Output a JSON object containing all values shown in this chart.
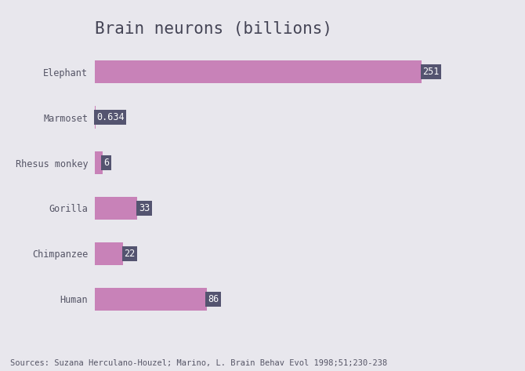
{
  "title": "Brain neurons (billions)",
  "categories": [
    "Elephant",
    "Marmoset",
    "Rhesus monkey",
    "Gorilla",
    "Chimpanzee",
    "Human"
  ],
  "values": [
    251,
    0.634,
    6,
    33,
    22,
    86
  ],
  "labels": [
    "251",
    "0.634",
    "6",
    "33",
    "22",
    "86"
  ],
  "bar_color": "#c882b8",
  "label_bg_color": "#545470",
  "label_text_color": "#ffffff",
  "background_color": "#e8e7ed",
  "title_color": "#444455",
  "axis_label_color": "#555566",
  "source_text": "Sources: Suzana Herculano-Houzel; Marino, L. Brain Behav Evol 1998;51;230-238",
  "xlim": [
    0,
    270
  ],
  "title_fontsize": 15,
  "bar_height": 0.5,
  "label_fontsize": 8.5,
  "ytick_fontsize": 8.5,
  "source_fontsize": 7.5
}
